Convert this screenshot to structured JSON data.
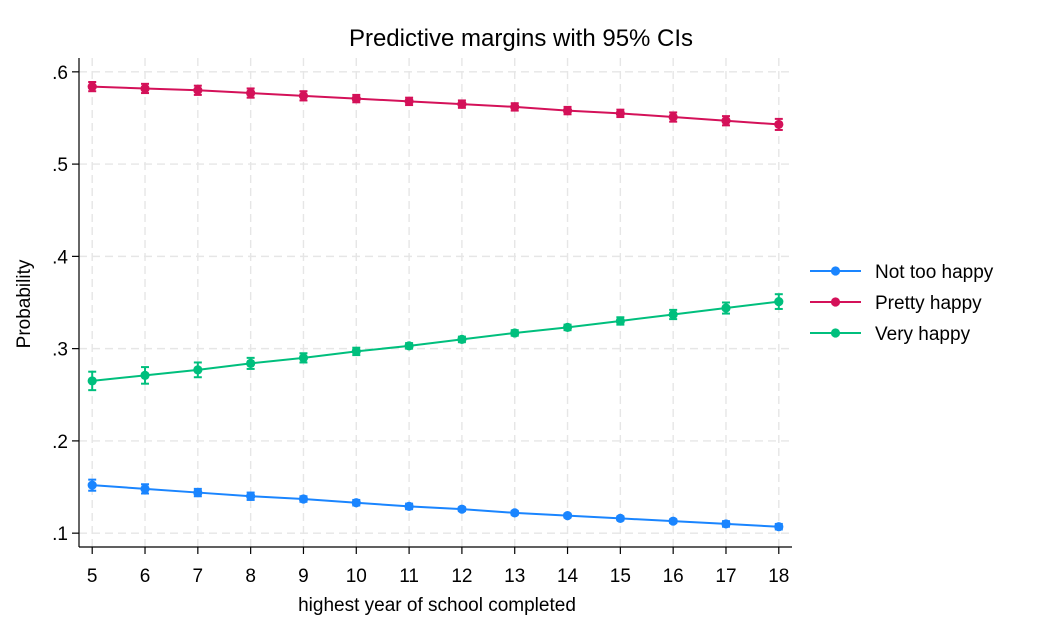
{
  "chart_data": {
    "type": "line",
    "title": "Predictive margins with 95% CIs",
    "xlabel": "highest year of school completed",
    "ylabel": "Probability",
    "x": [
      5,
      6,
      7,
      8,
      9,
      10,
      11,
      12,
      13,
      14,
      15,
      16,
      17,
      18
    ],
    "xticks": [
      "5",
      "6",
      "7",
      "8",
      "9",
      "10",
      "11",
      "12",
      "13",
      "14",
      "15",
      "16",
      "17",
      "18"
    ],
    "yticks": [
      {
        "value": 0.1,
        "label": ".1"
      },
      {
        "value": 0.2,
        "label": ".2"
      },
      {
        "value": 0.3,
        "label": ".3"
      },
      {
        "value": 0.4,
        "label": ".4"
      },
      {
        "value": 0.5,
        "label": ".5"
      },
      {
        "value": 0.6,
        "label": ".6"
      }
    ],
    "ylim": [
      0.085,
      0.615
    ],
    "xlim": [
      4.75,
      18.25
    ],
    "grid": true,
    "legend_position": "right",
    "series": [
      {
        "name": "Not too happy",
        "color": "#1a85ff",
        "values": [
          0.152,
          0.148,
          0.144,
          0.14,
          0.137,
          0.133,
          0.129,
          0.126,
          0.122,
          0.119,
          0.116,
          0.113,
          0.11,
          0.107
        ],
        "ci_half": [
          0.006,
          0.005,
          0.004,
          0.004,
          0.003,
          0.003,
          0.003,
          0.002,
          0.002,
          0.002,
          0.002,
          0.002,
          0.003,
          0.003
        ]
      },
      {
        "name": "Pretty happy",
        "color": "#d41159",
        "values": [
          0.584,
          0.582,
          0.58,
          0.577,
          0.574,
          0.571,
          0.568,
          0.565,
          0.562,
          0.558,
          0.555,
          0.551,
          0.547,
          0.543
        ],
        "ci_half": [
          0.005,
          0.005,
          0.005,
          0.005,
          0.005,
          0.004,
          0.004,
          0.004,
          0.004,
          0.004,
          0.004,
          0.005,
          0.005,
          0.006
        ]
      },
      {
        "name": "Very happy",
        "color": "#00bf7d",
        "values": [
          0.265,
          0.271,
          0.277,
          0.284,
          0.29,
          0.297,
          0.303,
          0.31,
          0.317,
          0.323,
          0.33,
          0.337,
          0.344,
          0.351
        ],
        "ci_half": [
          0.01,
          0.009,
          0.008,
          0.006,
          0.005,
          0.004,
          0.003,
          0.003,
          0.003,
          0.003,
          0.004,
          0.005,
          0.006,
          0.008
        ]
      }
    ]
  }
}
